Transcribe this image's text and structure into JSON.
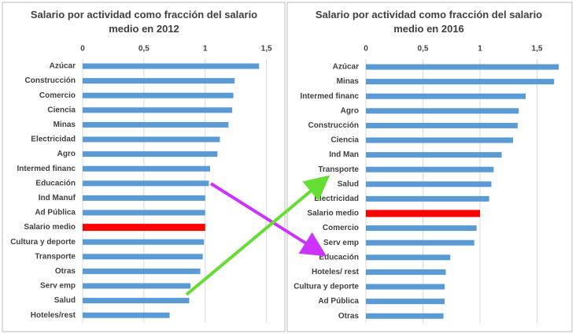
{
  "chart_data": [
    {
      "type": "bar",
      "orientation": "horizontal",
      "title": "Salario por actividad como fracción del salario medio en 2012",
      "categories": [
        "Azúcar",
        "Construcción",
        "Comercio",
        "Ciencia",
        "Minas",
        "Electricidad",
        "Agro",
        "Intermed financ",
        "Educación",
        "Ind Manuf",
        "Ad Pública",
        "Salario medio",
        "Cultura y deporte",
        "Transporte",
        "Otras",
        "Serv emp",
        "Salud",
        "Hoteles/rest"
      ],
      "values": [
        1.44,
        1.24,
        1.23,
        1.22,
        1.19,
        1.12,
        1.1,
        1.04,
        1.03,
        1.0,
        1.0,
        1.0,
        0.99,
        0.98,
        0.96,
        0.88,
        0.87,
        0.71
      ],
      "colors": [
        "#5b9bd5",
        "#5b9bd5",
        "#5b9bd5",
        "#5b9bd5",
        "#5b9bd5",
        "#5b9bd5",
        "#5b9bd5",
        "#5b9bd5",
        "#5b9bd5",
        "#5b9bd5",
        "#5b9bd5",
        "#ff0000",
        "#5b9bd5",
        "#5b9bd5",
        "#5b9bd5",
        "#5b9bd5",
        "#5b9bd5",
        "#5b9bd5"
      ],
      "xlim": [
        0,
        1.65
      ],
      "xticks": [
        0,
        {
          "value": 0.5,
          "label": "0,5"
        },
        1,
        {
          "value": 1.5,
          "label": "1,5"
        }
      ],
      "grid": true
    },
    {
      "type": "bar",
      "orientation": "horizontal",
      "title": "Salario por actividad como fracción del salario medio en 2016",
      "categories": [
        "Azúcar",
        "Minas",
        "Intermed financ",
        "Agro",
        "Construcción",
        "Ciencia",
        "Ind Man",
        "Transporte",
        "Salud",
        "Electricidad",
        "Salario medio",
        "Comercio",
        "Serv emp",
        "Educación",
        "Hoteles/ rest",
        "Cultura y deporte",
        "Ad Pública",
        "Otras"
      ],
      "values": [
        1.69,
        1.65,
        1.4,
        1.34,
        1.33,
        1.29,
        1.19,
        1.12,
        1.1,
        1.08,
        1.0,
        0.97,
        0.95,
        0.74,
        0.7,
        0.69,
        0.69,
        0.68
      ],
      "colors": [
        "#5b9bd5",
        "#5b9bd5",
        "#5b9bd5",
        "#5b9bd5",
        "#5b9bd5",
        "#5b9bd5",
        "#5b9bd5",
        "#5b9bd5",
        "#5b9bd5",
        "#5b9bd5",
        "#ff0000",
        "#5b9bd5",
        "#5b9bd5",
        "#5b9bd5",
        "#5b9bd5",
        "#5b9bd5",
        "#5b9bd5",
        "#5b9bd5"
      ],
      "xlim": [
        0,
        1.8
      ],
      "xticks": [
        0,
        {
          "value": 0.5,
          "label": "0,5"
        },
        1,
        {
          "value": 1.5,
          "label": "1,5"
        }
      ],
      "grid": true
    }
  ]
}
